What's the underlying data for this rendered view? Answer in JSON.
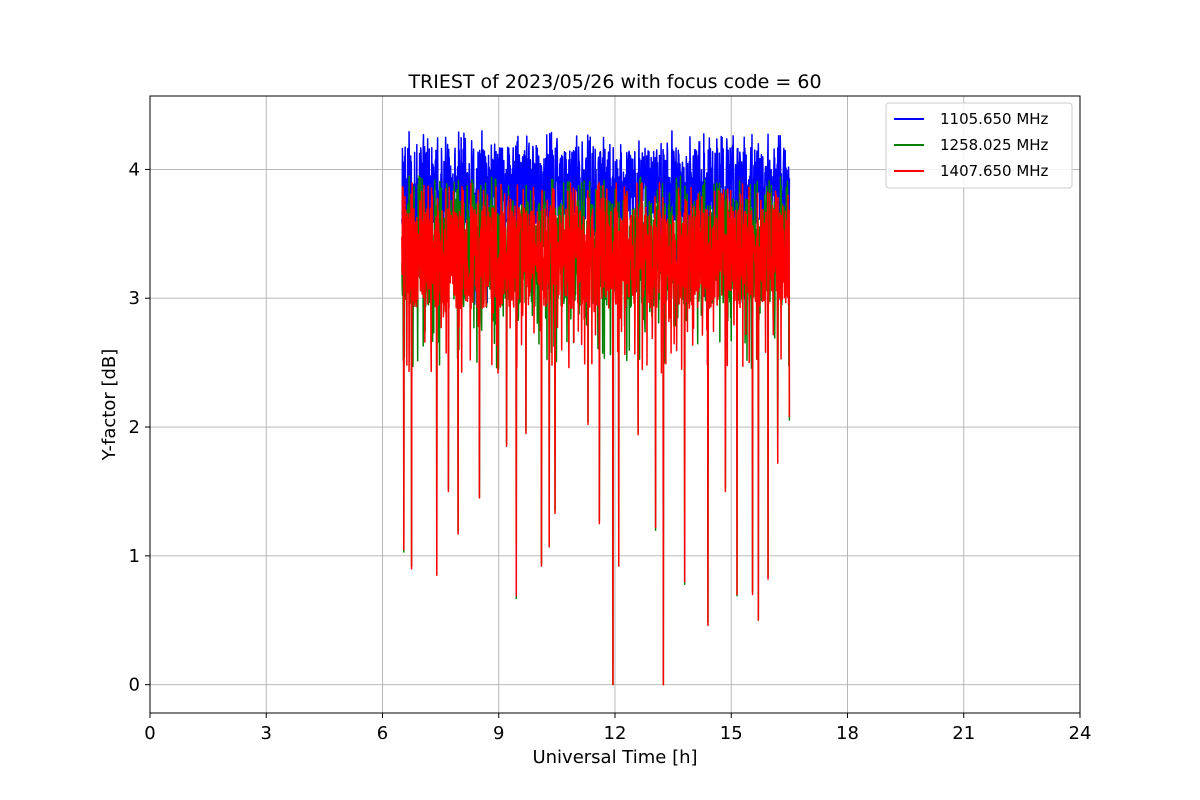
{
  "chart_data": {
    "type": "line",
    "title": "TRIEST of 2023/05/26 with focus code = 60",
    "xlabel": "Universal Time [h]",
    "ylabel": "Y-factor [dB]",
    "xlim": [
      0,
      24
    ],
    "ylim": [
      -0.22,
      4.57
    ],
    "xticks": [
      0,
      3,
      6,
      9,
      12,
      15,
      18,
      21,
      24
    ],
    "yticks": [
      0,
      1,
      2,
      3,
      4
    ],
    "grid": true,
    "legend_position": "top-right",
    "time_range": [
      6.5,
      16.5
    ],
    "series": [
      {
        "name": "1105.650 MHz",
        "color": "#0000ff",
        "baseline": 3.85,
        "typical_range": [
          3.5,
          4.3
        ],
        "dips": [
          [
            6.55,
            3.2
          ],
          [
            6.75,
            3.3
          ],
          [
            7.2,
            3.5
          ],
          [
            7.5,
            3.3
          ],
          [
            8.0,
            3.4
          ],
          [
            8.4,
            3.5
          ],
          [
            9.0,
            3.4
          ],
          [
            9.4,
            3.3
          ],
          [
            10.2,
            3.3
          ],
          [
            10.6,
            3.5
          ],
          [
            11.3,
            3.4
          ],
          [
            11.9,
            3.2
          ],
          [
            13.2,
            3.3
          ],
          [
            13.8,
            3.5
          ],
          [
            14.4,
            3.3
          ],
          [
            15.1,
            3.4
          ],
          [
            15.6,
            3.3
          ],
          [
            16.0,
            3.4
          ]
        ]
      },
      {
        "name": "1258.025 MHz",
        "color": "#008000",
        "baseline": 3.35,
        "typical_range": [
          2.9,
          3.95
        ],
        "dips": [
          [
            6.55,
            1.03
          ],
          [
            6.75,
            0.92
          ],
          [
            7.4,
            0.85
          ],
          [
            7.7,
            1.52
          ],
          [
            7.95,
            1.19
          ],
          [
            8.5,
            1.45
          ],
          [
            9.2,
            1.87
          ],
          [
            9.45,
            0.67
          ],
          [
            9.7,
            1.97
          ],
          [
            10.1,
            0.94
          ],
          [
            10.3,
            1.09
          ],
          [
            10.45,
            1.35
          ],
          [
            11.3,
            2.04
          ],
          [
            11.6,
            1.27
          ],
          [
            11.95,
            0.0
          ],
          [
            12.1,
            0.93
          ],
          [
            12.6,
            1.96
          ],
          [
            13.05,
            1.2
          ],
          [
            13.25,
            0.0
          ],
          [
            13.8,
            0.78
          ],
          [
            14.4,
            0.48
          ],
          [
            14.85,
            1.53
          ],
          [
            15.15,
            0.69
          ],
          [
            15.55,
            0.72
          ],
          [
            15.7,
            0.52
          ],
          [
            15.95,
            0.84
          ],
          [
            16.2,
            1.75
          ],
          [
            16.5,
            2.05
          ]
        ]
      },
      {
        "name": "1407.650 MHz",
        "color": "#ff0000",
        "baseline": 3.32,
        "typical_range": [
          2.9,
          3.9
        ],
        "dips": [
          [
            6.55,
            1.05
          ],
          [
            6.75,
            0.9
          ],
          [
            7.4,
            0.85
          ],
          [
            7.7,
            1.5
          ],
          [
            7.95,
            1.17
          ],
          [
            8.5,
            1.45
          ],
          [
            9.2,
            1.85
          ],
          [
            9.45,
            0.69
          ],
          [
            9.7,
            1.95
          ],
          [
            10.1,
            0.92
          ],
          [
            10.3,
            1.07
          ],
          [
            10.45,
            1.33
          ],
          [
            11.3,
            2.02
          ],
          [
            11.6,
            1.25
          ],
          [
            11.95,
            0.0
          ],
          [
            12.1,
            0.92
          ],
          [
            12.6,
            1.94
          ],
          [
            13.05,
            1.22
          ],
          [
            13.25,
            0.0
          ],
          [
            13.8,
            0.8
          ],
          [
            14.4,
            0.46
          ],
          [
            14.85,
            1.5
          ],
          [
            15.15,
            0.7
          ],
          [
            15.55,
            0.7
          ],
          [
            15.7,
            0.5
          ],
          [
            15.95,
            0.82
          ],
          [
            16.2,
            1.72
          ],
          [
            16.5,
            2.08
          ]
        ]
      }
    ]
  }
}
